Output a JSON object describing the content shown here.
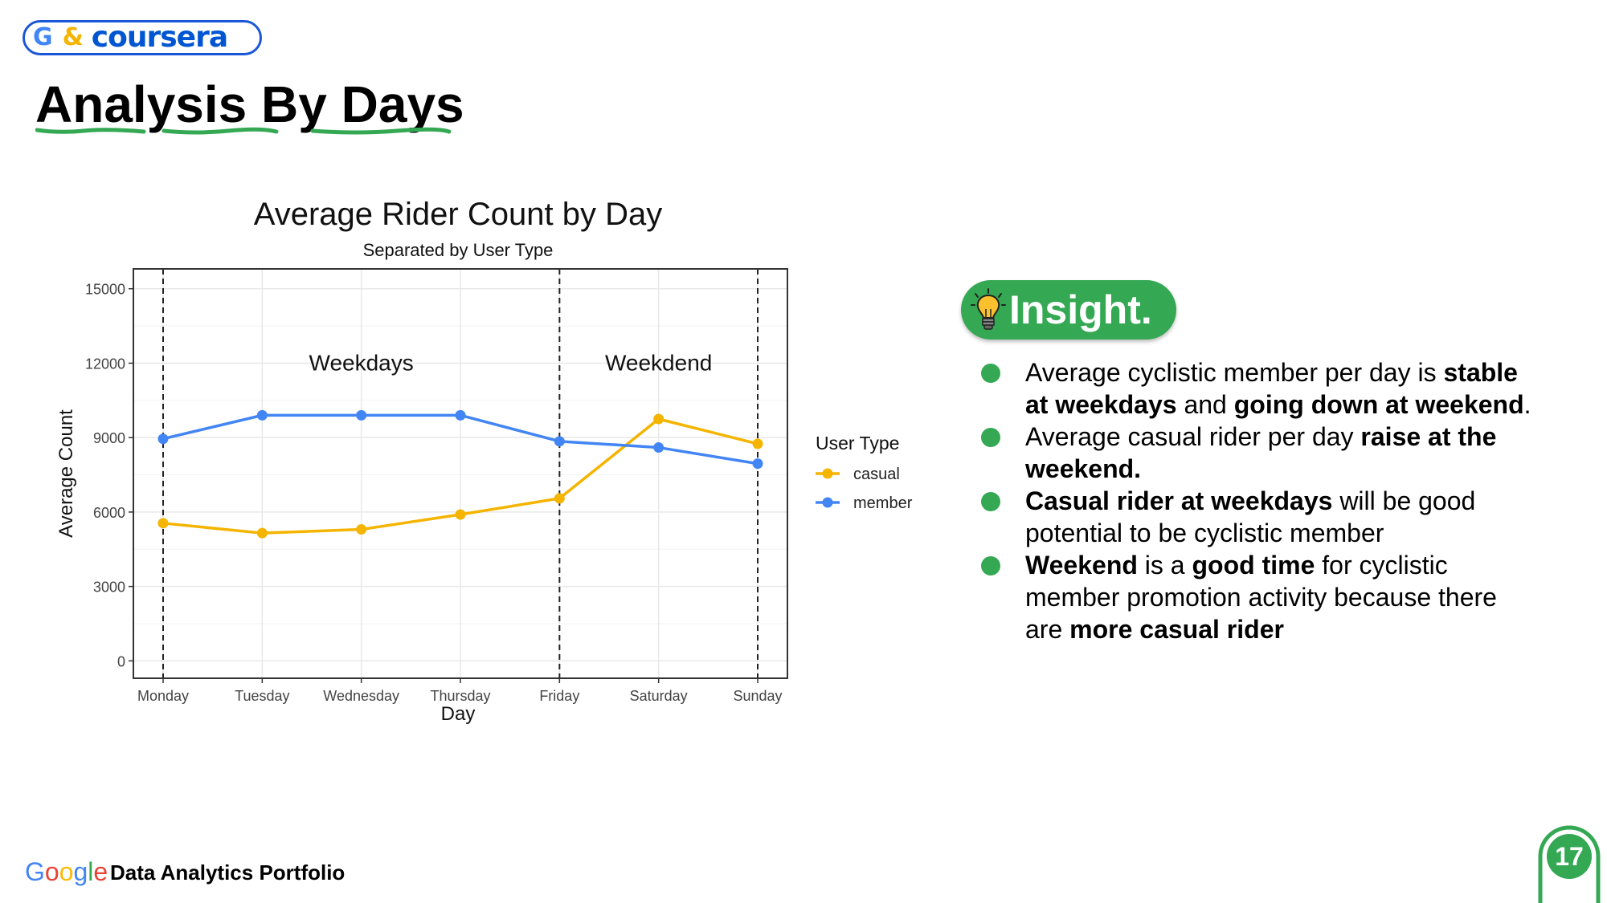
{
  "header": {
    "logo_g": "G",
    "logo_amp": "&",
    "logo_text": "coursera",
    "title": "Analysis By Days"
  },
  "chart_data": {
    "type": "line",
    "title": "Average Rider Count by Day",
    "subtitle": "Separated by User Type",
    "xlabel": "Day",
    "ylabel": "Average Count",
    "categories": [
      "Monday",
      "Tuesday",
      "Wednesday",
      "Thursday",
      "Friday",
      "Saturday",
      "Sunday"
    ],
    "yticks": [
      0,
      3000,
      6000,
      9000,
      12000,
      15000
    ],
    "ylim": [
      -700,
      15800
    ],
    "legend_title": "User Type",
    "legend_position": "right",
    "grid": true,
    "series": [
      {
        "name": "casual",
        "color": "#f4b400",
        "values": [
          5550,
          5150,
          5300,
          5900,
          6550,
          9750,
          8750
        ]
      },
      {
        "name": "member",
        "color": "#4285f4",
        "values": [
          8950,
          9900,
          9900,
          9900,
          8850,
          8600,
          7950
        ]
      }
    ],
    "annotations": [
      {
        "text": "Weekdays",
        "x": 2,
        "y": 12000
      },
      {
        "text": "Weekdend",
        "x": 5,
        "y": 12000
      }
    ],
    "dashed_lines_at": [
      0,
      4,
      6
    ]
  },
  "insight": {
    "label": "Insight.",
    "bullets": [
      [
        {
          "t": " Average cyclistic member per day is ",
          "b": false
        },
        {
          "t": "stable at weekdays",
          "b": true
        },
        {
          "t": " and ",
          "b": false
        },
        {
          "t": "going down at weekend",
          "b": true
        },
        {
          "t": ".",
          "b": false
        }
      ],
      [
        {
          "t": "Average casual rider per day ",
          "b": false
        },
        {
          "t": "raise at the weekend.",
          "b": true
        }
      ],
      [
        {
          "t": "Casual rider at weekdays",
          "b": true
        },
        {
          "t": " will be good potential to be cyclistic member",
          "b": false
        }
      ],
      [
        {
          "t": "Weekend",
          "b": true
        },
        {
          "t": " is a ",
          "b": false
        },
        {
          "t": "good time",
          "b": true
        },
        {
          "t": " for cyclistic member promotion activity because there are ",
          "b": false
        },
        {
          "t": "more casual rider",
          "b": true
        }
      ]
    ]
  },
  "footer": {
    "google": "Google",
    "text": "Data Analytics Portfolio",
    "page": "17"
  },
  "colors": {
    "green": "#34a853",
    "google_blue": "#4285f4",
    "google_red": "#ea4335",
    "google_yellow": "#fbbc05",
    "coursera_blue": "#0056d2"
  }
}
